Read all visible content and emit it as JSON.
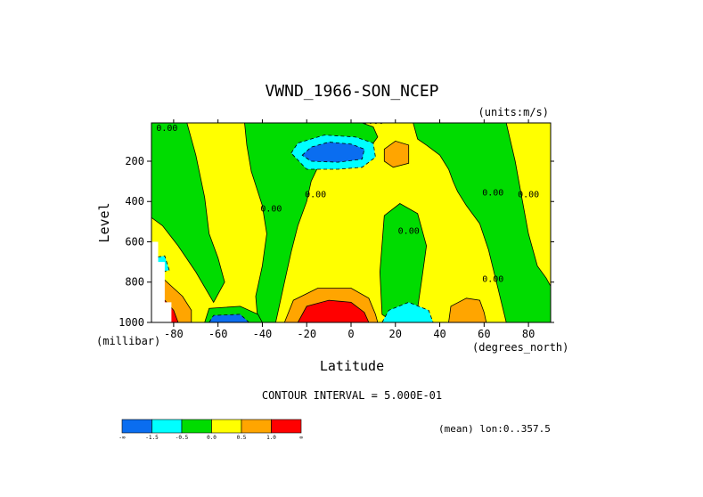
{
  "chart_data": {
    "type": "contour",
    "title": "VWND_1966-SON_NCEP",
    "units_label": "(units:m/s)",
    "xlabel": "Latitude",
    "ylabel": "Level",
    "x_units": "(degrees_north)",
    "y_units": "(millibar)",
    "xlim": [
      -90,
      90
    ],
    "ylim": [
      1000,
      10
    ],
    "y_reversed": true,
    "x_ticks": [
      -80,
      -60,
      -40,
      -20,
      0,
      20,
      40,
      60,
      80
    ],
    "x_tick_labels": [
      "-80",
      "-60",
      "-40",
      "-20",
      "0",
      "20",
      "40",
      "60",
      "80"
    ],
    "y_ticks": [
      200,
      400,
      600,
      800,
      1000
    ],
    "y_tick_labels": [
      "200",
      "400",
      "600",
      "800",
      "1000"
    ],
    "contour_interval_text": "CONTOUR INTERVAL = 5.000E-01",
    "mean_text": "(mean) lon:0..357.5",
    "contour_zero_label": "0.00",
    "colorbar": {
      "colors": [
        "#0a6df0",
        "#00ffff",
        "#00dc00",
        "#ffff00",
        "#ffa500",
        "#ff0000"
      ],
      "labels": [
        "-1.5",
        "-0.5",
        "0.0",
        "0.5",
        "1.0"
      ],
      "end_labels": [
        "-∞",
        "∞"
      ]
    },
    "background_color": "#ffff00",
    "regions": [
      {
        "level": "green",
        "points": [
          [
            -88,
            10
          ],
          [
            -74,
            10
          ],
          [
            -70,
            170
          ],
          [
            -66,
            380
          ],
          [
            -64,
            560
          ],
          [
            -60,
            680
          ],
          [
            -57,
            800
          ],
          [
            -62,
            900
          ],
          [
            -70,
            750
          ],
          [
            -78,
            620
          ],
          [
            -85,
            520
          ],
          [
            -90,
            480
          ],
          [
            -90,
            10
          ]
        ]
      },
      {
        "level": "green",
        "points": [
          [
            -48,
            10
          ],
          [
            -30,
            10
          ],
          [
            -12,
            10
          ],
          [
            5,
            10
          ],
          [
            10,
            30
          ],
          [
            12,
            80
          ],
          [
            8,
            140
          ],
          [
            2,
            180
          ],
          [
            -10,
            190
          ],
          [
            -15,
            230
          ],
          [
            -18,
            300
          ],
          [
            -20,
            400
          ],
          [
            -24,
            520
          ],
          [
            -27,
            650
          ],
          [
            -30,
            800
          ],
          [
            -33,
            950
          ],
          [
            -34,
            1000
          ],
          [
            -42,
            1000
          ],
          [
            -43,
            870
          ],
          [
            -40,
            720
          ],
          [
            -38,
            560
          ],
          [
            -40,
            420
          ],
          [
            -45,
            250
          ],
          [
            -47,
            120
          ]
        ]
      },
      {
        "level": "green",
        "points": [
          [
            28,
            10
          ],
          [
            48,
            10
          ],
          [
            62,
            10
          ],
          [
            70,
            10
          ],
          [
            74,
            200
          ],
          [
            77,
            380
          ],
          [
            80,
            560
          ],
          [
            84,
            720
          ],
          [
            88,
            780
          ],
          [
            90,
            820
          ],
          [
            90,
            1000
          ],
          [
            70,
            1000
          ],
          [
            66,
            820
          ],
          [
            62,
            640
          ],
          [
            58,
            510
          ],
          [
            52,
            420
          ],
          [
            48,
            350
          ],
          [
            46,
            300
          ],
          [
            44,
            240
          ],
          [
            40,
            170
          ],
          [
            34,
            120
          ],
          [
            30,
            90
          ]
        ]
      },
      {
        "level": "green",
        "points": [
          [
            15,
            470
          ],
          [
            22,
            410
          ],
          [
            30,
            460
          ],
          [
            34,
            620
          ],
          [
            32,
            780
          ],
          [
            30,
            930
          ],
          [
            25,
            970
          ],
          [
            19,
            1000
          ],
          [
            14,
            960
          ],
          [
            13,
            750
          ]
        ]
      },
      {
        "level": "green",
        "points": [
          [
            -66,
            1000
          ],
          [
            -64,
            930
          ],
          [
            -50,
            920
          ],
          [
            -42,
            960
          ],
          [
            -40,
            1000
          ]
        ]
      },
      {
        "level": "cyan",
        "points": [
          [
            -27,
            160
          ],
          [
            -24,
            110
          ],
          [
            -12,
            70
          ],
          [
            2,
            80
          ],
          [
            10,
            110
          ],
          [
            11,
            180
          ],
          [
            5,
            230
          ],
          [
            -6,
            240
          ],
          [
            -20,
            240
          ]
        ]
      },
      {
        "level": "blue",
        "points": [
          [
            -22,
            170
          ],
          [
            -18,
            130
          ],
          [
            -10,
            105
          ],
          [
            0,
            115
          ],
          [
            6,
            140
          ],
          [
            5,
            190
          ],
          [
            -6,
            205
          ],
          [
            -18,
            200
          ]
        ]
      },
      {
        "level": "cyan",
        "points": [
          [
            14,
            1000
          ],
          [
            17,
            940
          ],
          [
            26,
            900
          ],
          [
            35,
            940
          ],
          [
            37,
            1000
          ]
        ]
      },
      {
        "level": "cyan",
        "points": [
          [
            -90,
            680
          ],
          [
            -84,
            670
          ],
          [
            -82,
            740
          ],
          [
            -88,
            760
          ],
          [
            -90,
            740
          ]
        ]
      },
      {
        "level": "blue",
        "points": [
          [
            -64,
            1000
          ],
          [
            -62,
            965
          ],
          [
            -50,
            960
          ],
          [
            -46,
            1000
          ]
        ]
      },
      {
        "level": "orange",
        "points": [
          [
            -30,
            1000
          ],
          [
            -26,
            890
          ],
          [
            -15,
            830
          ],
          [
            0,
            830
          ],
          [
            8,
            880
          ],
          [
            11,
            960
          ],
          [
            12,
            1000
          ]
        ]
      },
      {
        "level": "red",
        "points": [
          [
            -24,
            1000
          ],
          [
            -20,
            920
          ],
          [
            -10,
            890
          ],
          [
            0,
            900
          ],
          [
            6,
            950
          ],
          [
            8,
            1000
          ]
        ]
      },
      {
        "level": "orange",
        "points": [
          [
            15,
            140
          ],
          [
            20,
            100
          ],
          [
            26,
            120
          ],
          [
            26,
            210
          ],
          [
            19,
            230
          ],
          [
            15,
            200
          ]
        ]
      },
      {
        "level": "orange",
        "points": [
          [
            44,
            1000
          ],
          [
            45,
            920
          ],
          [
            52,
            880
          ],
          [
            58,
            890
          ],
          [
            60,
            950
          ],
          [
            61,
            1000
          ]
        ]
      },
      {
        "level": "orange",
        "points": [
          [
            -90,
            780
          ],
          [
            -84,
            790
          ],
          [
            -76,
            870
          ],
          [
            -72,
            940
          ],
          [
            -72,
            1000
          ],
          [
            -90,
            1000
          ]
        ]
      },
      {
        "level": "red",
        "points": [
          [
            -90,
            880
          ],
          [
            -84,
            890
          ],
          [
            -80,
            940
          ],
          [
            -78,
            1000
          ],
          [
            -90,
            1000
          ]
        ]
      },
      {
        "level": "white",
        "points": [
          [
            -90,
            600
          ],
          [
            -87,
            600
          ],
          [
            -87,
            700
          ],
          [
            -84,
            700
          ],
          [
            -84,
            900
          ],
          [
            -81,
            900
          ],
          [
            -81,
            1000
          ],
          [
            -90,
            1000
          ]
        ]
      }
    ],
    "zero_labels": [
      {
        "x": 10,
        "y": 15
      },
      {
        "x": -83,
        "y": 50
      },
      {
        "x": -16,
        "y": 380
      },
      {
        "x": -36,
        "y": 450
      },
      {
        "x": 26,
        "y": 560
      },
      {
        "x": 64,
        "y": 370
      },
      {
        "x": 80,
        "y": 380
      },
      {
        "x": 64,
        "y": 800
      }
    ]
  }
}
